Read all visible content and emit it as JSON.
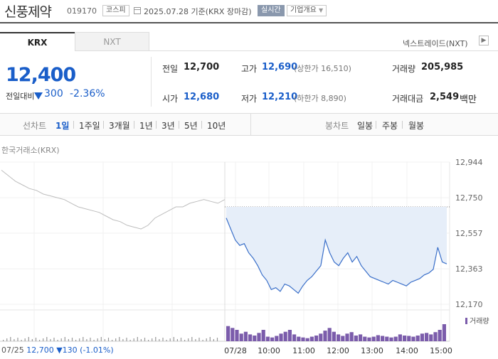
{
  "header": {
    "stock_name": "신풍제약",
    "stock_code": "019170",
    "market": "코스피",
    "date_basis": "2025.07.28  기준(KRX 장마감)",
    "realtime_label": "실시간",
    "company_label": "기업개요"
  },
  "tabs": {
    "krx": "KRX",
    "nxt": "NXT",
    "nxt_link": "넥스트레이드(NXT)"
  },
  "price": {
    "current": "12,400",
    "change_label": "전일대비",
    "change": "300",
    "change_rate": "-2.36%"
  },
  "stats": {
    "prev_close": {
      "label": "전일",
      "value": "12,700"
    },
    "open": {
      "label": "시가",
      "value": "12,680"
    },
    "high": {
      "label": "고가",
      "value": "12,690",
      "sub": "(상한가 16,510)"
    },
    "low": {
      "label": "저가",
      "value": "12,210",
      "sub": "(하한가 8,890)"
    },
    "volume": {
      "label": "거래량",
      "value": "205,985"
    },
    "amount": {
      "label": "거래대금",
      "value": "2,549",
      "unit": "백만"
    }
  },
  "period": {
    "line_label": "선차트",
    "line_items": [
      "1일",
      "1주일",
      "3개월",
      "1년",
      "3년",
      "5년",
      "10년"
    ],
    "active": "1일",
    "candle_label": "봉차트",
    "candle_items": [
      "일봉",
      "주봉",
      "월봉"
    ]
  },
  "chart_caption": "한국거래소(KRX)",
  "volume_legend": "거래량",
  "bottom_info": {
    "date": "07/25",
    "close": "12,700",
    "change": "▼130",
    "rate": "(-1.01%)"
  },
  "colors": {
    "down": "#1a5ec9",
    "line": "#3a6fc9",
    "fill": "#e6eef9",
    "prev_line": "#bdbdbd",
    "volume": "#7b5cab"
  },
  "chart_data": {
    "type": "line",
    "y_ticks": [
      "12,944",
      "12,750",
      "12,557",
      "12,363",
      "12,170"
    ],
    "ylim": [
      12170,
      12944
    ],
    "x_labels": [
      "07/28",
      "10:00",
      "11:00",
      "12:00",
      "13:00",
      "14:00",
      "15:00"
    ],
    "prev_close": 12700,
    "prev_day_series": [
      12900,
      12870,
      12840,
      12820,
      12800,
      12790,
      12770,
      12760,
      12750,
      12740,
      12720,
      12700,
      12690,
      12680,
      12670,
      12650,
      12630,
      12620,
      12600,
      12590,
      12580,
      12600,
      12640,
      12660,
      12680,
      12700,
      12700,
      12720,
      12730,
      12740,
      12730,
      12720,
      12740
    ],
    "today_series": [
      12640,
      12580,
      12520,
      12490,
      12500,
      12450,
      12420,
      12380,
      12330,
      12300,
      12250,
      12260,
      12240,
      12280,
      12270,
      12250,
      12230,
      12270,
      12300,
      12320,
      12350,
      12380,
      12520,
      12450,
      12400,
      12380,
      12420,
      12450,
      12400,
      12430,
      12380,
      12350,
      12320,
      12310,
      12300,
      12290,
      12280,
      12300,
      12290,
      12280,
      12270,
      12290,
      12300,
      12310,
      12330,
      12340,
      12360,
      12480,
      12400,
      12390
    ],
    "volume_series": [
      40,
      35,
      30,
      20,
      25,
      18,
      15,
      22,
      30,
      12,
      10,
      14,
      20,
      25,
      30,
      18,
      12,
      10,
      8,
      12,
      15,
      20,
      28,
      35,
      25,
      18,
      14,
      20,
      24,
      15,
      18,
      12,
      10,
      12,
      16,
      14,
      12,
      10,
      12,
      18,
      15,
      14,
      12,
      15,
      20,
      22,
      18,
      24,
      30,
      45
    ]
  }
}
